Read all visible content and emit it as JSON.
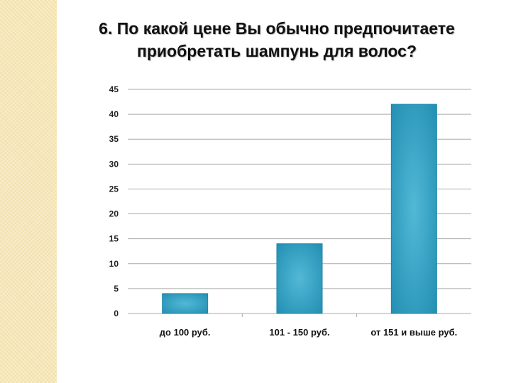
{
  "slide": {
    "title_line1": "6.  По какой цене Вы обычно предпочитаете",
    "title_line2": "приобретать шампунь для волос?"
  },
  "colors": {
    "bar": "#2f9fc2",
    "bar_edge": "#1c86a8",
    "grid": "#aaaaaa",
    "side_strip": "#f7e7b8"
  },
  "chart_data": {
    "type": "bar",
    "categories": [
      "до 100 руб.",
      "101 - 150 руб.",
      "от 151 и выше руб."
    ],
    "values": [
      4,
      14,
      42
    ],
    "ylim": [
      0,
      45
    ],
    "yticks": [
      0,
      5,
      10,
      15,
      20,
      25,
      30,
      35,
      40,
      45
    ],
    "grid": true,
    "legend": "none"
  }
}
